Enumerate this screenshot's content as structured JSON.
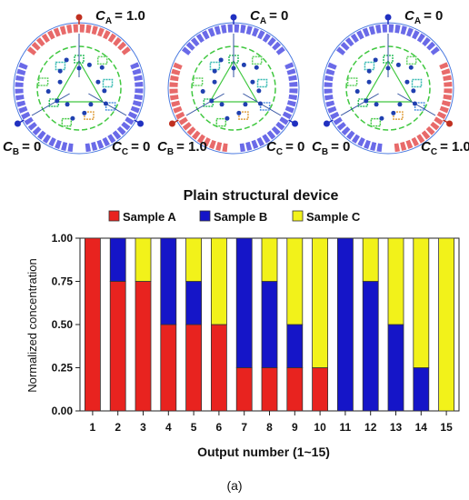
{
  "panel_label": "(a)",
  "devices": [
    {
      "name": "device-1",
      "labels": {
        "a": {
          "sym": "C",
          "sub": "A",
          "val": "= 1.0"
        },
        "b": {
          "sym": "C",
          "sub": "B",
          "val": "= 0"
        },
        "c": {
          "sym": "C",
          "sub": "C",
          "val": "= 0"
        }
      },
      "ring_colors": {
        "top": "#e86a6a",
        "left": "#6a6ae8",
        "right": "#6a6ae8"
      },
      "highlight": "a"
    },
    {
      "name": "device-2",
      "labels": {
        "a": {
          "sym": "C",
          "sub": "A",
          "val": "= 0"
        },
        "b": {
          "sym": "C",
          "sub": "B",
          "val": "= 1.0"
        },
        "c": {
          "sym": "C",
          "sub": "C",
          "val": "= 0"
        }
      },
      "ring_colors": {
        "top": "#6a6ae8",
        "left": "#e86a6a",
        "right": "#6a6ae8"
      },
      "highlight": "b"
    },
    {
      "name": "device-3",
      "labels": {
        "a": {
          "sym": "C",
          "sub": "A",
          "val": "= 0"
        },
        "b": {
          "sym": "C",
          "sub": "B",
          "val": "= 0"
        },
        "c": {
          "sym": "C",
          "sub": "C",
          "val": "= 1.0"
        }
      },
      "ring_colors": {
        "top": "#6a6ae8",
        "left": "#6a6ae8",
        "right": "#e86a6a"
      },
      "highlight": "c"
    }
  ],
  "chart_data": {
    "type": "bar",
    "stacked": true,
    "title": "Plain structural device",
    "xlabel": "Output number (1~15)",
    "ylabel": "Normalized concentration",
    "ylim": [
      0,
      1.0
    ],
    "yticks": [
      "0.00",
      "0.25",
      "0.50",
      "0.75",
      "1.00"
    ],
    "categories": [
      "1",
      "2",
      "3",
      "4",
      "5",
      "6",
      "7",
      "8",
      "9",
      "10",
      "11",
      "12",
      "13",
      "14",
      "15"
    ],
    "series": [
      {
        "name": "Sample A",
        "color": "#e8231f",
        "values": [
          1.0,
          0.75,
          0.75,
          0.5,
          0.5,
          0.5,
          0.25,
          0.25,
          0.25,
          0.25,
          0,
          0,
          0,
          0,
          0
        ]
      },
      {
        "name": "Sample B",
        "color": "#1515c8",
        "values": [
          0,
          0.25,
          0,
          0.5,
          0.25,
          0,
          0.75,
          0.5,
          0.25,
          0,
          1.0,
          0.75,
          0.5,
          0.25,
          0
        ]
      },
      {
        "name": "Sample C",
        "color": "#f2f21a",
        "values": [
          0,
          0,
          0.25,
          0,
          0.25,
          0.5,
          0,
          0.25,
          0.5,
          0.75,
          0,
          0.25,
          0.5,
          0.75,
          1.0
        ]
      }
    ],
    "legend_position": "top"
  }
}
